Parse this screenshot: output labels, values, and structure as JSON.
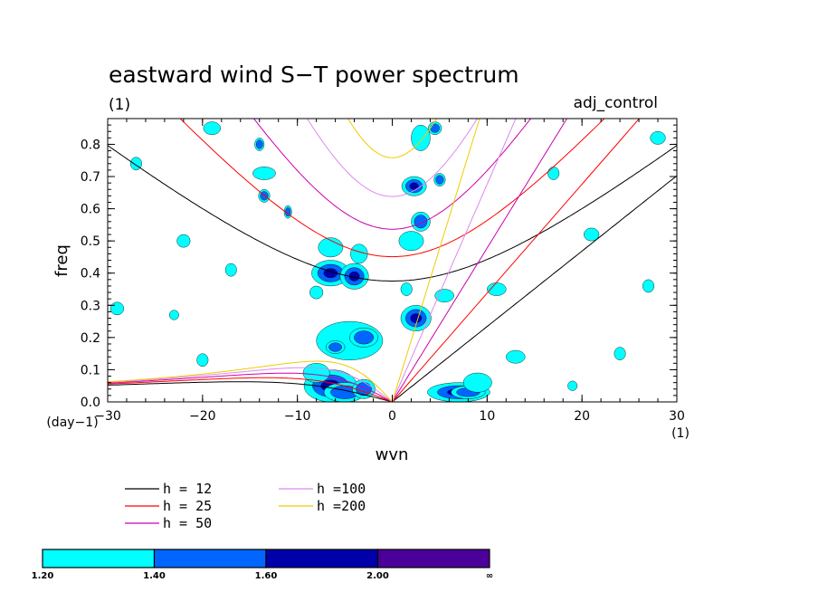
{
  "title": "eastward wind S−T power spectrum",
  "subtitle_left": "(1)",
  "subtitle_right": "adj_control",
  "chart_data": {
    "type": "heatmap",
    "title": "eastward wind S−T power spectrum",
    "xlabel": "wvn",
    "ylabel": "freq",
    "x_unit": "(1)",
    "y_unit": "(day−1)",
    "xlim": [
      -30,
      30
    ],
    "ylim": [
      0,
      0.88
    ],
    "xticks": [
      -30,
      -20,
      -10,
      0,
      10,
      20,
      30
    ],
    "xtick_labels": [
      "−30",
      "−20",
      "−10",
      "0",
      "10",
      "20",
      "30"
    ],
    "yticks": [
      0,
      0.1,
      0.2,
      0.3,
      0.4,
      0.5,
      0.6,
      0.7,
      0.8
    ],
    "ytick_labels": [
      "0.0",
      "0.1",
      "0.2",
      "0.3",
      "0.4",
      "0.5",
      "0.6",
      "0.7",
      "0.8"
    ],
    "grid": false,
    "contour_levels": [
      1.2,
      1.4,
      1.6,
      2.0
    ],
    "colorbar": {
      "labels": [
        "1.20",
        "1.40",
        "1.60",
        "2.00",
        "∞"
      ],
      "colors": [
        "#00ffff",
        "#0066ff",
        "#0000aa",
        "#4b0099"
      ]
    },
    "dispersion_curves": [
      {
        "label": "h = 12",
        "h": 12,
        "color": "#000000"
      },
      {
        "label": "h = 25",
        "h": 25,
        "color": "#ff0000"
      },
      {
        "label": "h = 50",
        "h": 50,
        "color": "#cc00aa"
      },
      {
        "label": "h =100",
        "h": 100,
        "color": "#dd88ee"
      },
      {
        "label": "h =200",
        "h": 200,
        "color": "#eecc00"
      }
    ],
    "blobs": [
      {
        "x": -6.5,
        "y": 0.05,
        "rx": 2.8,
        "ry": 0.05,
        "level": 3
      },
      {
        "x": -5,
        "y": 0.03,
        "rx": 2.2,
        "ry": 0.03,
        "level": 2
      },
      {
        "x": -3,
        "y": 0.04,
        "rx": 1.2,
        "ry": 0.03,
        "level": 2
      },
      {
        "x": -8,
        "y": 0.09,
        "rx": 1.4,
        "ry": 0.03,
        "level": 1
      },
      {
        "x": -4.5,
        "y": 0.19,
        "rx": 3.5,
        "ry": 0.06,
        "level": 1
      },
      {
        "x": -3,
        "y": 0.2,
        "rx": 1.5,
        "ry": 0.03,
        "level": 2
      },
      {
        "x": -6,
        "y": 0.17,
        "rx": 1.0,
        "ry": 0.02,
        "level": 2
      },
      {
        "x": -6.5,
        "y": 0.4,
        "rx": 2.0,
        "ry": 0.04,
        "level": 3
      },
      {
        "x": -4,
        "y": 0.39,
        "rx": 1.5,
        "ry": 0.04,
        "level": 3
      },
      {
        "x": -6.5,
        "y": 0.48,
        "rx": 1.3,
        "ry": 0.03,
        "level": 1
      },
      {
        "x": -3.5,
        "y": 0.46,
        "rx": 0.9,
        "ry": 0.03,
        "level": 1
      },
      {
        "x": 7,
        "y": 0.03,
        "rx": 3.3,
        "ry": 0.03,
        "level": 3
      },
      {
        "x": 8,
        "y": 0.03,
        "rx": 1.8,
        "ry": 0.02,
        "level": 2
      },
      {
        "x": 9,
        "y": 0.06,
        "rx": 1.5,
        "ry": 0.03,
        "level": 1
      },
      {
        "x": 2.5,
        "y": 0.26,
        "rx": 1.6,
        "ry": 0.04,
        "level": 3
      },
      {
        "x": 5.5,
        "y": 0.33,
        "rx": 1.0,
        "ry": 0.02,
        "level": 1
      },
      {
        "x": 2,
        "y": 0.5,
        "rx": 1.3,
        "ry": 0.03,
        "level": 1
      },
      {
        "x": 3,
        "y": 0.56,
        "rx": 1.0,
        "ry": 0.03,
        "level": 2
      },
      {
        "x": 2.3,
        "y": 0.67,
        "rx": 1.3,
        "ry": 0.03,
        "level": 3
      },
      {
        "x": 5,
        "y": 0.69,
        "rx": 0.6,
        "ry": 0.02,
        "level": 2
      },
      {
        "x": 3,
        "y": 0.82,
        "rx": 1.0,
        "ry": 0.04,
        "level": 1
      },
      {
        "x": 4.5,
        "y": 0.85,
        "rx": 0.7,
        "ry": 0.02,
        "level": 2
      },
      {
        "x": -13.5,
        "y": 0.64,
        "rx": 0.6,
        "ry": 0.02,
        "level": 2
      },
      {
        "x": -13.5,
        "y": 0.71,
        "rx": 1.2,
        "ry": 0.02,
        "level": 1
      },
      {
        "x": -11,
        "y": 0.59,
        "rx": 0.4,
        "ry": 0.02,
        "level": 2
      },
      {
        "x": -14,
        "y": 0.8,
        "rx": 0.5,
        "ry": 0.02,
        "level": 2
      },
      {
        "x": -19,
        "y": 0.85,
        "rx": 0.9,
        "ry": 0.02,
        "level": 1
      },
      {
        "x": 11,
        "y": 0.35,
        "rx": 1.0,
        "ry": 0.02,
        "level": 1
      },
      {
        "x": 13,
        "y": 0.14,
        "rx": 1.0,
        "ry": 0.02,
        "level": 1
      },
      {
        "x": 21,
        "y": 0.52,
        "rx": 0.8,
        "ry": 0.02,
        "level": 1
      },
      {
        "x": 27,
        "y": 0.36,
        "rx": 0.6,
        "ry": 0.02,
        "level": 1
      },
      {
        "x": 28,
        "y": 0.82,
        "rx": 0.8,
        "ry": 0.02,
        "level": 1
      },
      {
        "x": -29,
        "y": 0.29,
        "rx": 0.7,
        "ry": 0.02,
        "level": 1
      },
      {
        "x": -27,
        "y": 0.74,
        "rx": 0.6,
        "ry": 0.02,
        "level": 1
      },
      {
        "x": -22,
        "y": 0.5,
        "rx": 0.7,
        "ry": 0.02,
        "level": 1
      },
      {
        "x": -17,
        "y": 0.41,
        "rx": 0.6,
        "ry": 0.02,
        "level": 1
      },
      {
        "x": -20,
        "y": 0.13,
        "rx": 0.6,
        "ry": 0.02,
        "level": 1
      },
      {
        "x": 24,
        "y": 0.15,
        "rx": 0.6,
        "ry": 0.02,
        "level": 1
      },
      {
        "x": 17,
        "y": 0.71,
        "rx": 0.6,
        "ry": 0.02,
        "level": 1
      },
      {
        "x": -8,
        "y": 0.34,
        "rx": 0.7,
        "ry": 0.02,
        "level": 1
      },
      {
        "x": 1.5,
        "y": 0.35,
        "rx": 0.6,
        "ry": 0.02,
        "level": 1
      },
      {
        "x": 19,
        "y": 0.05,
        "rx": 0.5,
        "ry": 0.015,
        "level": 1
      },
      {
        "x": -23,
        "y": 0.27,
        "rx": 0.5,
        "ry": 0.015,
        "level": 1
      }
    ]
  }
}
